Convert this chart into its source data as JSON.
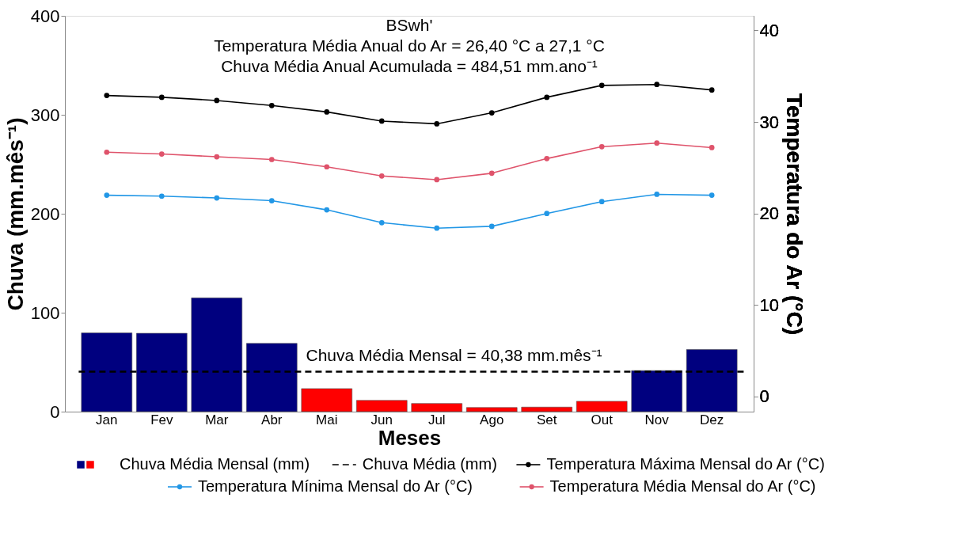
{
  "chart_data": {
    "type": "bar",
    "annotations": [
      "BSwh'",
      "Temperatura Média Anual do Ar = 26,40 °C a 27,1 °C",
      "Chuva Média Anual Acumulada = 484,51 mm.ano⁻¹",
      {
        "text": "Chuva Média Mensal = 40,38 mm.mês⁻¹",
        "y": 40.38
      }
    ],
    "xlabel": "Meses",
    "ylabel": "Chuva (mm.mês⁻¹)",
    "y2label": "Temperatura do Ar (°C)",
    "categories": [
      "Jan",
      "Fev",
      "Mar",
      "Abr",
      "Mai",
      "Jun",
      "Jul",
      "Ago",
      "Set",
      "Out",
      "Nov",
      "Dez"
    ],
    "series": [
      {
        "name": "Chuva Média Mensal (mm)",
        "colors": [
          "#00007f",
          "#00007f",
          "#00007f",
          "#00007f",
          "#ff0000",
          "#ff0000",
          "#ff0000",
          "#ff0000",
          "#ff0000",
          "#ff0000",
          "#00007f",
          "#00007f"
        ],
        "values": [
          79.6,
          79.2,
          115,
          69,
          23.3,
          11.4,
          8.3,
          4.2,
          4.6,
          10.5,
          41.5,
          62.8
        ]
      },
      {
        "name": "Temperatura Máxima Mensal do Ar (°C)",
        "type": "line",
        "axis": "y2",
        "color": "#000000",
        "values": [
          32.9,
          32.7,
          32.35,
          31.8,
          31.1,
          30.1,
          29.8,
          31.0,
          32.7,
          34.0,
          34.1,
          33.5
        ]
      },
      {
        "name": "Temperatura Mínima Mensal do Ar (°C)",
        "type": "line",
        "axis": "y2",
        "color": "#2297e6",
        "values": [
          22.0,
          21.9,
          21.7,
          21.4,
          20.4,
          19.0,
          18.4,
          18.6,
          20.0,
          21.3,
          22.1,
          22.0
        ]
      },
      {
        "name": "Temperatura Média Mensal do Ar (°C)",
        "type": "line",
        "axis": "y2",
        "color": "#df536b",
        "values": [
          26.7,
          26.5,
          26.2,
          25.9,
          25.1,
          24.1,
          23.7,
          24.4,
          26.0,
          27.3,
          27.7,
          27.2
        ]
      }
    ],
    "ref_lines": [
      {
        "axis": "y",
        "value": 40.38,
        "label": "Chuva Média (mm)",
        "color": "#000000",
        "line_style": "dashed"
      }
    ],
    "ylim": [
      0,
      400
    ],
    "yticks": [
      0,
      100,
      200,
      300,
      400
    ],
    "y2lim": [
      -1.65,
      41.6
    ],
    "y2ticks": [
      0,
      10,
      20,
      30,
      40
    ],
    "marker": "circle",
    "line_style": "solid",
    "grid": false,
    "legend": "bottom"
  }
}
